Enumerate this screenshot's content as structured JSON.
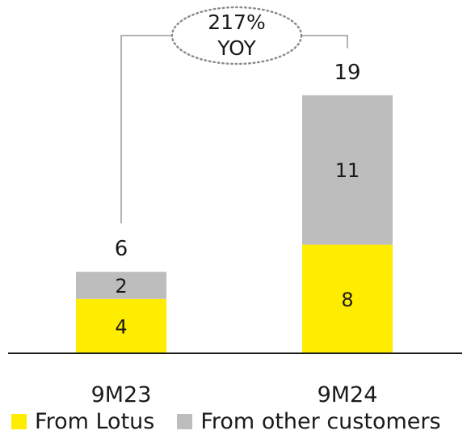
{
  "chart_data": {
    "type": "bar",
    "stacked": true,
    "categories": [
      "9M23",
      "9M24"
    ],
    "series": [
      {
        "name": "From Lotus",
        "values": [
          4,
          8
        ],
        "color": "#FFED00"
      },
      {
        "name": "From other customers",
        "values": [
          2,
          11
        ],
        "color": "#BDBDBD"
      }
    ],
    "totals": [
      "6",
      "19"
    ],
    "annotation": {
      "line1": "217%",
      "line2": "YOY"
    },
    "ylim": [
      0,
      19.5
    ],
    "grid": false,
    "legend_position": "bottom-left"
  }
}
